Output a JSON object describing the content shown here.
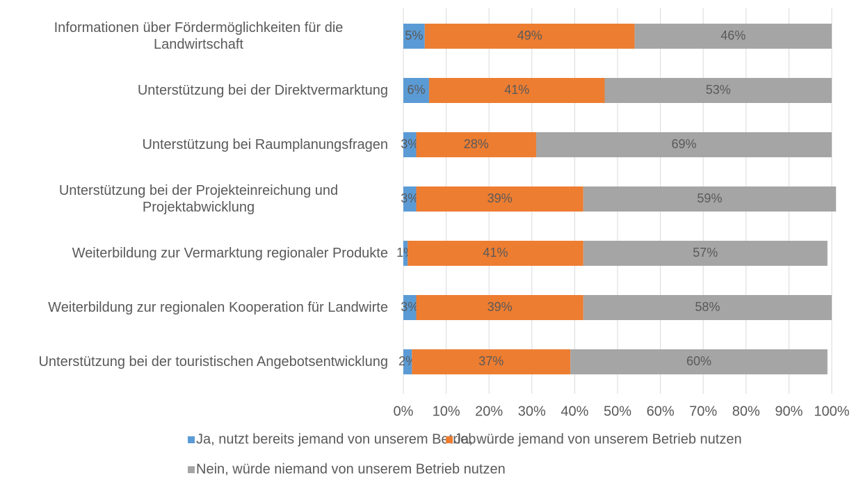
{
  "chart_data": {
    "type": "stacked_bar_horizontal",
    "categories": [
      "Informationen über Fördermöglichkeiten für die Landwirtschaft",
      "Unterstützung bei der Direktvermarktung",
      "Unterstützung bei Raumplanungsfragen",
      "Unterstützung bei der Projekteinreichung und Projektabwicklung",
      "Weiterbildung zur Vermarktung regionaler Produkte",
      "Weiterbildung zur regionalen Kooperation für Landwirte",
      "Unterstützung bei der touristischen Angebotsentwicklung"
    ],
    "series": [
      {
        "name": "Ja, nutzt bereits jemand von unserem Betrieb",
        "color": "#5b9bd5",
        "values": [
          5,
          6,
          3,
          3,
          1,
          3,
          2
        ],
        "value_labels": [
          "5%",
          "6%",
          "3%",
          "3%",
          "1%",
          "3%",
          "2%"
        ]
      },
      {
        "name": "Ja, würde jemand von unserem Betrieb nutzen",
        "color": "#ed7d31",
        "values": [
          49,
          41,
          28,
          39,
          41,
          39,
          37
        ],
        "value_labels": [
          "49%",
          "41%",
          "28%",
          "39%",
          "41%",
          "39%",
          "37%"
        ]
      },
      {
        "name": "Nein, würde niemand von unserem Betrieb nutzen",
        "color": "#a5a5a5",
        "values": [
          46,
          53,
          69,
          59,
          57,
          58,
          60
        ],
        "value_labels": [
          "46%",
          "53%",
          "69%",
          "59%",
          "57%",
          "58%",
          "60%"
        ]
      }
    ],
    "xlim": [
      0,
      100
    ],
    "xticks": [
      {
        "value": 0,
        "label": "0%"
      },
      {
        "value": 10,
        "label": "10%"
      },
      {
        "value": 20,
        "label": "20%"
      },
      {
        "value": 30,
        "label": "30%"
      },
      {
        "value": 40,
        "label": "40%"
      },
      {
        "value": 50,
        "label": "50%"
      },
      {
        "value": 60,
        "label": "60%"
      },
      {
        "value": 70,
        "label": "70%"
      },
      {
        "value": 80,
        "label": "80%"
      },
      {
        "value": 90,
        "label": "90%"
      },
      {
        "value": 100,
        "label": "100%"
      }
    ],
    "grid": true,
    "legend": "bottom"
  }
}
